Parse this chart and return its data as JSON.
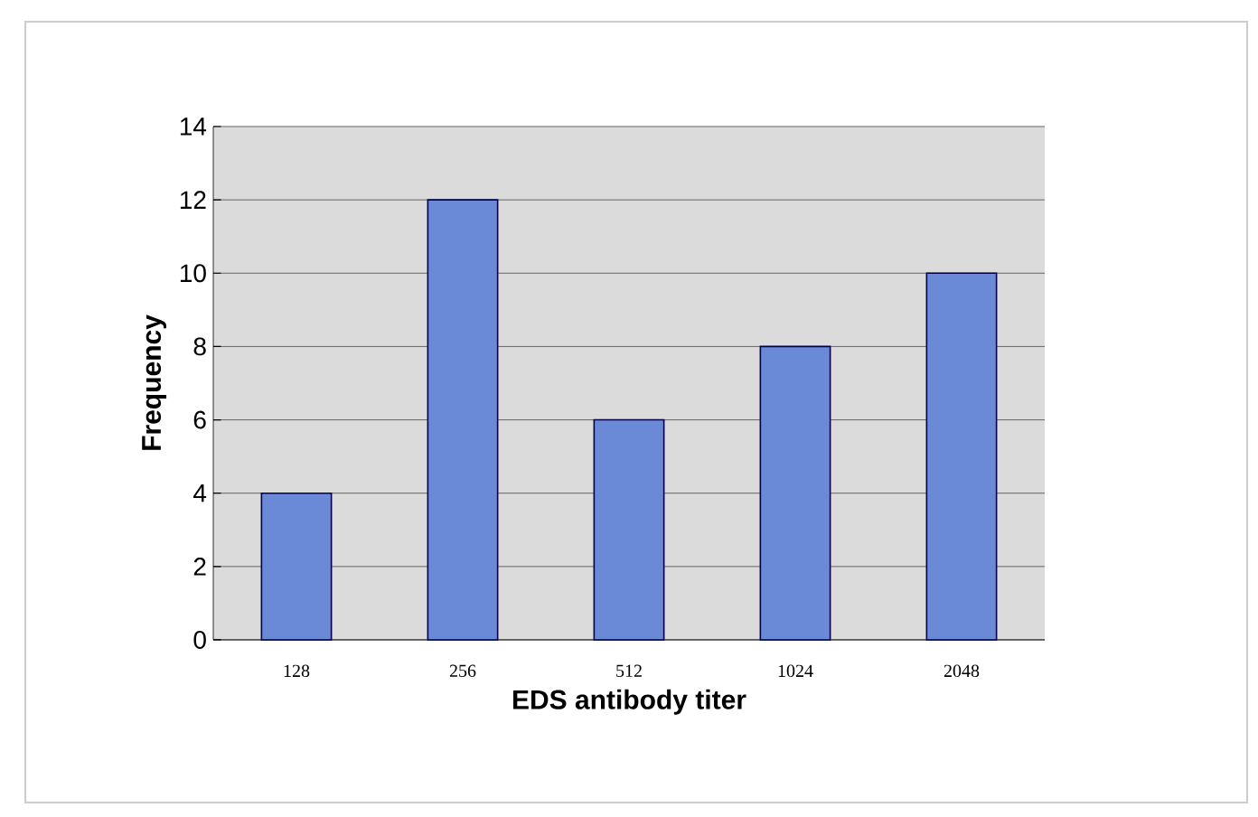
{
  "chart_data": {
    "type": "bar",
    "xlabel": "EDS antibody titer",
    "ylabel": "Frequency",
    "categories": [
      "128",
      "256",
      "512",
      "1024",
      "2048"
    ],
    "values": [
      4,
      12,
      6,
      8,
      10
    ],
    "color": "#6a8ad8",
    "ylim": [
      0,
      14
    ],
    "yticks": [
      0,
      2,
      4,
      6,
      8,
      10,
      12,
      14
    ],
    "grid": "y"
  }
}
